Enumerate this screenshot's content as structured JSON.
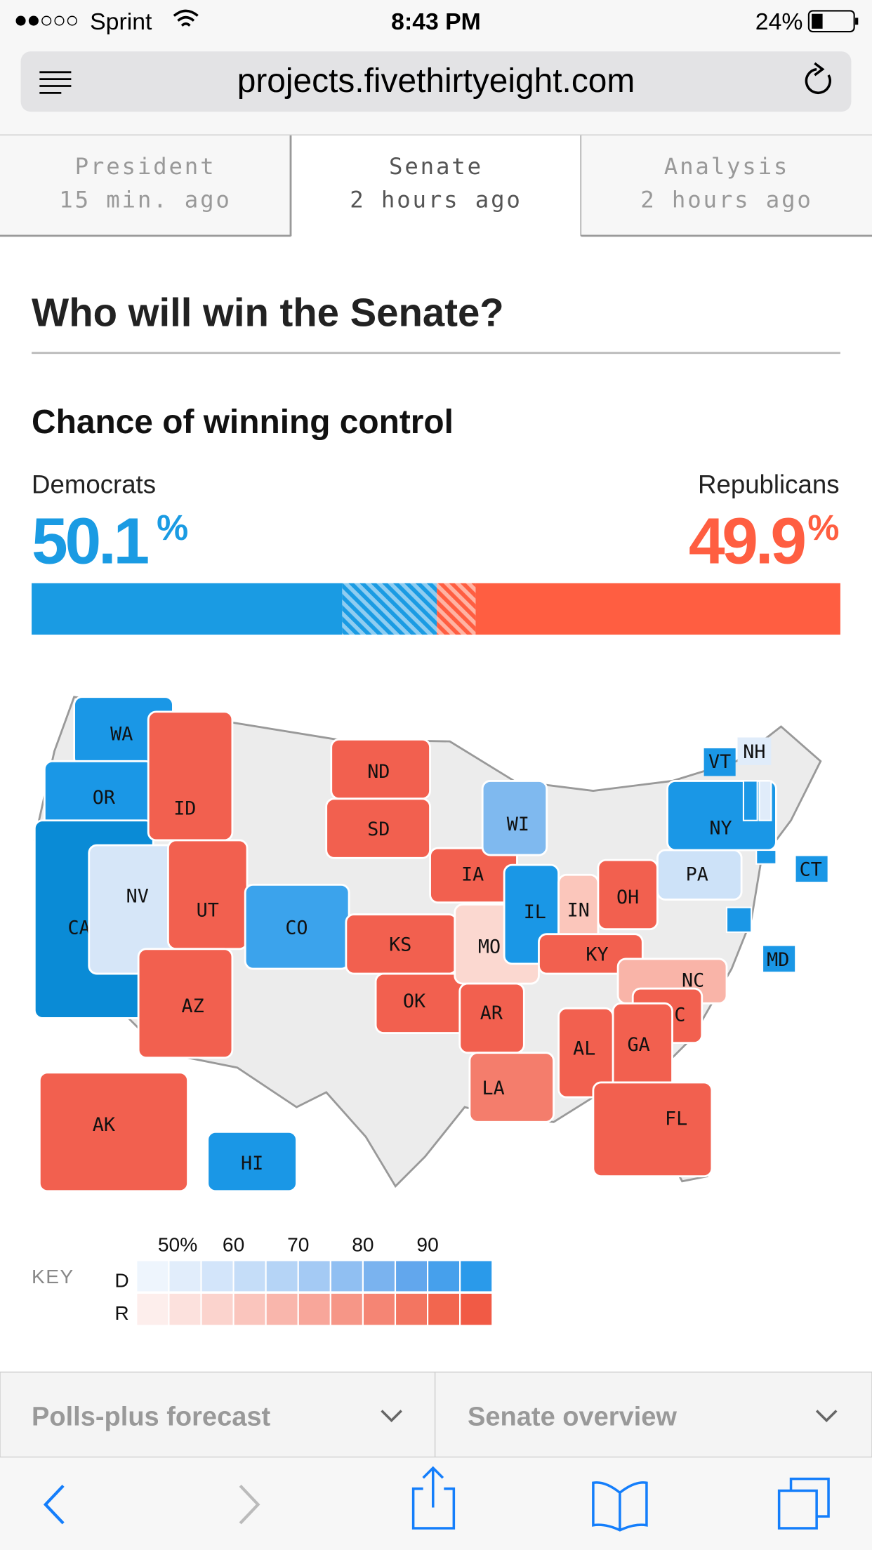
{
  "status_bar": {
    "carrier": "Sprint",
    "time": "8:43 PM",
    "battery": "24%"
  },
  "address_bar": {
    "url": "projects.fivethirtyeight.com"
  },
  "tabs": [
    {
      "title": "President",
      "updated": "15 min. ago",
      "active": false
    },
    {
      "title": "Senate",
      "updated": "2 hours ago",
      "active": true
    },
    {
      "title": "Analysis",
      "updated": "2 hours ago",
      "active": false
    }
  ],
  "heading": "Who will win the Senate?",
  "forecast": {
    "title": "Chance of winning control",
    "unit": "%",
    "democrats": {
      "label": "Democrats",
      "value": 50.1,
      "solid": 38.4,
      "color": "#1a9be3"
    },
    "republicans": {
      "label": "Republicans",
      "value": 49.9,
      "solid": 45.1,
      "color": "#ff5e41"
    }
  },
  "map": {
    "states": [
      {
        "label": "WA",
        "color": "#1a97e6"
      },
      {
        "label": "OR",
        "color": "#1a97e6"
      },
      {
        "label": "CA",
        "color": "#0a8bd6"
      },
      {
        "label": "NV",
        "color": "#d6e6f8"
      },
      {
        "label": "ID",
        "color": "#f2604f"
      },
      {
        "label": "UT",
        "color": "#f2604f"
      },
      {
        "label": "AZ",
        "color": "#f2604f"
      },
      {
        "label": "CO",
        "color": "#3ba3ec"
      },
      {
        "label": "ND",
        "color": "#f2604f"
      },
      {
        "label": "SD",
        "color": "#f2604f"
      },
      {
        "label": "KS",
        "color": "#f2604f"
      },
      {
        "label": "OK",
        "color": "#f2604f"
      },
      {
        "label": "IA",
        "color": "#f2604f"
      },
      {
        "label": "MO",
        "color": "#fbd8d0"
      },
      {
        "label": "AR",
        "color": "#f2604f"
      },
      {
        "label": "LA",
        "color": "#f47d6c"
      },
      {
        "label": "WI",
        "color": "#7fb9ef"
      },
      {
        "label": "IL",
        "color": "#1a97e6"
      },
      {
        "label": "IN",
        "color": "#fbc6bb"
      },
      {
        "label": "OH",
        "color": "#f2604f"
      },
      {
        "label": "KY",
        "color": "#f2604f"
      },
      {
        "label": "NC",
        "color": "#f9b4a8"
      },
      {
        "label": "SC",
        "color": "#f2604f"
      },
      {
        "label": "GA",
        "color": "#f2604f"
      },
      {
        "label": "AL",
        "color": "#f2604f"
      },
      {
        "label": "FL",
        "color": "#f2604f"
      },
      {
        "label": "PA",
        "color": "#cde2f8"
      },
      {
        "label": "NY",
        "color": "#1a97e6"
      },
      {
        "label": "VT",
        "color": "#1a97e6"
      },
      {
        "label": "NH",
        "color": "#e0ecfa"
      },
      {
        "label": "CT",
        "color": "#1a97e6"
      },
      {
        "label": "MD",
        "color": "#1a97e6"
      },
      {
        "label": "AK",
        "color": "#f2604f"
      },
      {
        "label": "HI",
        "color": "#1a97e6"
      }
    ]
  },
  "key": {
    "title": "KEY",
    "rows": [
      "D",
      "R"
    ],
    "range": [
      45,
      100
    ],
    "ticks": [
      {
        "value": 50,
        "label": "50%"
      },
      60,
      70,
      80,
      90
    ],
    "d_colors": [
      "#eef5fd",
      "#e1edfb",
      "#d3e5fa",
      "#c5ddf8",
      "#b5d4f6",
      "#a4caf4",
      "#90bff2",
      "#7ab3ef",
      "#62a7ed",
      "#46a0ec",
      "#2a9aea"
    ],
    "r_colors": [
      "#fdeeec",
      "#fce1dd",
      "#fbd3cd",
      "#fac5bd",
      "#f9b6ac",
      "#f8a69a",
      "#f69687",
      "#f58574",
      "#f37561",
      "#f2664f",
      "#f15a45"
    ]
  },
  "dropdowns": [
    "Polls-plus forecast",
    "Senate overview"
  ]
}
